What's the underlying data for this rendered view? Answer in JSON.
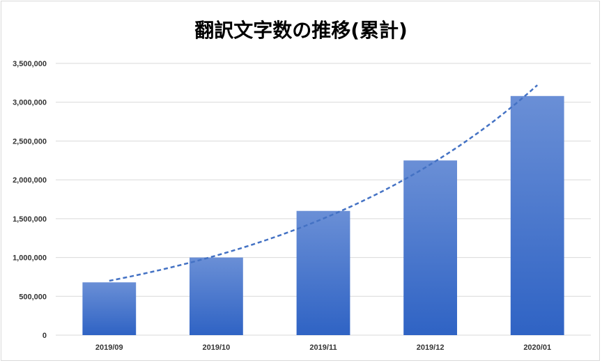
{
  "chart_data": {
    "type": "bar",
    "title": "翻訳文字数の推移(累計)",
    "categories": [
      "2019/09",
      "2019/10",
      "2019/11",
      "2019/12",
      "2020/01"
    ],
    "values": [
      680000,
      1000000,
      1600000,
      2250000,
      3080000
    ],
    "yticks": [
      "0",
      "500,000",
      "1,000,000",
      "1,500,000",
      "2,000,000",
      "2,500,000",
      "3,000,000",
      "3,500,000"
    ],
    "ylim": [
      0,
      3500000
    ],
    "grid": true,
    "trendline": {
      "type": "exponential",
      "style": "dashed",
      "start_value": 700000,
      "end_value": 3220000
    },
    "colors": {
      "bar_top": "#6a8fd6",
      "bar_bottom": "#2f63c4",
      "trendline": "#4472c4",
      "grid": "#d9d9d9"
    }
  }
}
